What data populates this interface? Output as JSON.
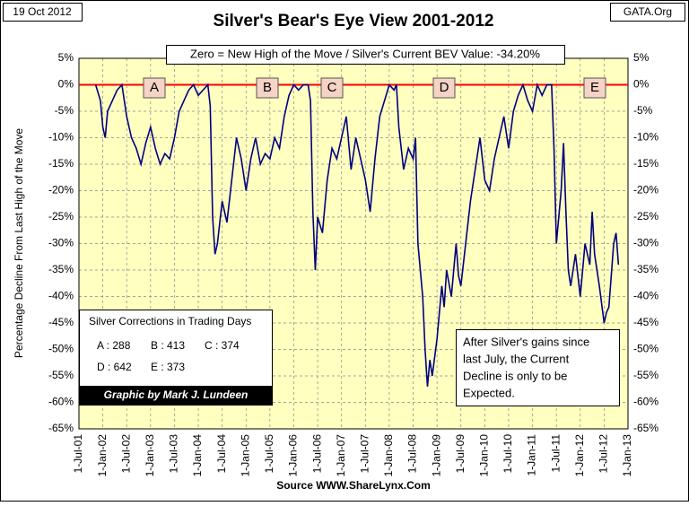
{
  "chart_data": {
    "type": "line",
    "title": "Silver's Bear's Eye View 2001-2012",
    "date": "19 Oct 2012",
    "site": "GATA.Org",
    "subtitle": "Zero = New High of the Move / Silver's Current BEV Value: -34.20%",
    "y_label": "Percentage Decline From Last High of the Move",
    "source": "Source WWW.ShareLynx.Com",
    "annotations": [
      "A",
      "B",
      "C",
      "D",
      "E"
    ],
    "corrections_title": "Silver Corrections in Trading Days",
    "corrections": [
      "A : 288",
      "B : 413",
      "C : 374",
      "D : 642",
      "E : 373"
    ],
    "credit": "Graphic by Mark J. Lundeen",
    "note": [
      "After Silver's gains since",
      "last July, the Current",
      "Decline is only to be",
      "Expected."
    ],
    "zero_line_color": "#ff0000",
    "background": "#ffffc0",
    "grid": true,
    "xlim": [
      2001.5,
      2013.0
    ],
    "xticks": [
      {
        "value": 2001.5,
        "label": "1-Jul-01"
      },
      {
        "value": 2002.0,
        "label": "1-Jan-02"
      },
      {
        "value": 2002.5,
        "label": "1-Jul-02"
      },
      {
        "value": 2003.0,
        "label": "1-Jan-03"
      },
      {
        "value": 2003.5,
        "label": "1-Jul-03"
      },
      {
        "value": 2004.0,
        "label": "1-Jan-04"
      },
      {
        "value": 2004.5,
        "label": "1-Jul-04"
      },
      {
        "value": 2005.0,
        "label": "1-Jan-05"
      },
      {
        "value": 2005.5,
        "label": "1-Jul-05"
      },
      {
        "value": 2006.0,
        "label": "1-Jan-06"
      },
      {
        "value": 2006.5,
        "label": "1-Jul-06"
      },
      {
        "value": 2007.0,
        "label": "1-Jan-07"
      },
      {
        "value": 2007.5,
        "label": "1-Jul-07"
      },
      {
        "value": 2008.0,
        "label": "1-Jan-08"
      },
      {
        "value": 2008.5,
        "label": "1-Jul-08"
      },
      {
        "value": 2009.0,
        "label": "1-Jan-09"
      },
      {
        "value": 2009.5,
        "label": "1-Jul-09"
      },
      {
        "value": 2010.0,
        "label": "1-Jan-10"
      },
      {
        "value": 2010.5,
        "label": "1-Jul-10"
      },
      {
        "value": 2011.0,
        "label": "1-Jan-11"
      },
      {
        "value": 2011.5,
        "label": "1-Jul-11"
      },
      {
        "value": 2012.0,
        "label": "1-Jan-12"
      },
      {
        "value": 2012.5,
        "label": "1-Jul-12"
      },
      {
        "value": 2013.0,
        "label": "1-Jan-13"
      }
    ],
    "ylim": [
      -65,
      5
    ],
    "yticks": [
      {
        "value": 5,
        "label": "5%"
      },
      {
        "value": 0,
        "label": "0%"
      },
      {
        "value": -5,
        "label": "-5%"
      },
      {
        "value": -10,
        "label": "-10%"
      },
      {
        "value": -15,
        "label": "-15%"
      },
      {
        "value": -20,
        "label": "-20%"
      },
      {
        "value": -25,
        "label": "-25%"
      },
      {
        "value": -30,
        "label": "-30%"
      },
      {
        "value": -35,
        "label": "-35%"
      },
      {
        "value": -40,
        "label": "-40%"
      },
      {
        "value": -45,
        "label": "-45%"
      },
      {
        "value": -50,
        "label": "-50%"
      },
      {
        "value": -55,
        "label": "-55%"
      },
      {
        "value": -60,
        "label": "-60%"
      },
      {
        "value": -65,
        "label": "-65%"
      }
    ],
    "series": [
      {
        "color": "#000080",
        "x": [
          2001.85,
          2001.95,
          2002.0,
          2002.05,
          2002.1,
          2002.2,
          2002.3,
          2002.4,
          2002.5,
          2002.6,
          2002.7,
          2002.8,
          2002.9,
          2003.0,
          2003.1,
          2003.2,
          2003.3,
          2003.4,
          2003.5,
          2003.6,
          2003.7,
          2003.8,
          2003.9,
          2004.0,
          2004.1,
          2004.2,
          2004.25,
          2004.3,
          2004.35,
          2004.4,
          2004.5,
          2004.6,
          2004.7,
          2004.8,
          2004.9,
          2005.0,
          2005.1,
          2005.2,
          2005.3,
          2005.4,
          2005.5,
          2005.6,
          2005.7,
          2005.8,
          2005.9,
          2006.0,
          2006.1,
          2006.2,
          2006.3,
          2006.35,
          2006.4,
          2006.45,
          2006.5,
          2006.6,
          2006.7,
          2006.8,
          2006.9,
          2007.0,
          2007.1,
          2007.2,
          2007.3,
          2007.4,
          2007.5,
          2007.6,
          2007.7,
          2007.8,
          2007.9,
          2008.0,
          2008.1,
          2008.15,
          2008.2,
          2008.3,
          2008.4,
          2008.5,
          2008.55,
          2008.6,
          2008.7,
          2008.75,
          2008.8,
          2008.85,
          2008.9,
          2009.0,
          2009.1,
          2009.15,
          2009.2,
          2009.3,
          2009.4,
          2009.45,
          2009.5,
          2009.6,
          2009.7,
          2009.8,
          2009.9,
          2010.0,
          2010.1,
          2010.2,
          2010.3,
          2010.4,
          2010.5,
          2010.6,
          2010.7,
          2010.8,
          2010.9,
          2011.0,
          2011.1,
          2011.2,
          2011.3,
          2011.4,
          2011.45,
          2011.5,
          2011.6,
          2011.65,
          2011.7,
          2011.75,
          2011.8,
          2011.9,
          2012.0,
          2012.1,
          2012.2,
          2012.25,
          2012.3,
          2012.4,
          2012.5,
          2012.55,
          2012.6,
          2012.7,
          2012.75,
          2012.8
        ],
        "values": [
          0,
          -3,
          -8,
          -10,
          -5,
          -3,
          -1,
          0,
          -6,
          -10,
          -12,
          -15,
          -11,
          -8,
          -12,
          -15,
          -13,
          -14,
          -10,
          -5,
          -3,
          -1,
          0,
          -2,
          -1,
          0,
          -4,
          -25,
          -32,
          -30,
          -22,
          -26,
          -18,
          -10,
          -14,
          -20,
          -14,
          -10,
          -15,
          -13,
          -14,
          -10,
          -12,
          -6,
          -2,
          0,
          -1,
          0,
          0,
          -3,
          -24,
          -35,
          -25,
          -28,
          -18,
          -12,
          -14,
          -10,
          -6,
          -16,
          -10,
          -14,
          -18,
          -24,
          -14,
          -6,
          -3,
          0,
          -1,
          0,
          -8,
          -16,
          -12,
          -14,
          -10,
          -30,
          -40,
          -50,
          -57,
          -52,
          -55,
          -48,
          -38,
          -42,
          -35,
          -40,
          -30,
          -36,
          -38,
          -30,
          -22,
          -16,
          -10,
          -18,
          -20,
          -14,
          -10,
          -6,
          -12,
          -5,
          -2,
          0,
          -3,
          -5,
          0,
          -2,
          0,
          0,
          -12,
          -30,
          -20,
          -11,
          -24,
          -35,
          -38,
          -32,
          -40,
          -30,
          -34,
          -24,
          -32,
          -38,
          -45,
          -43,
          -42,
          -30,
          -28,
          -34
        ]
      }
    ]
  }
}
